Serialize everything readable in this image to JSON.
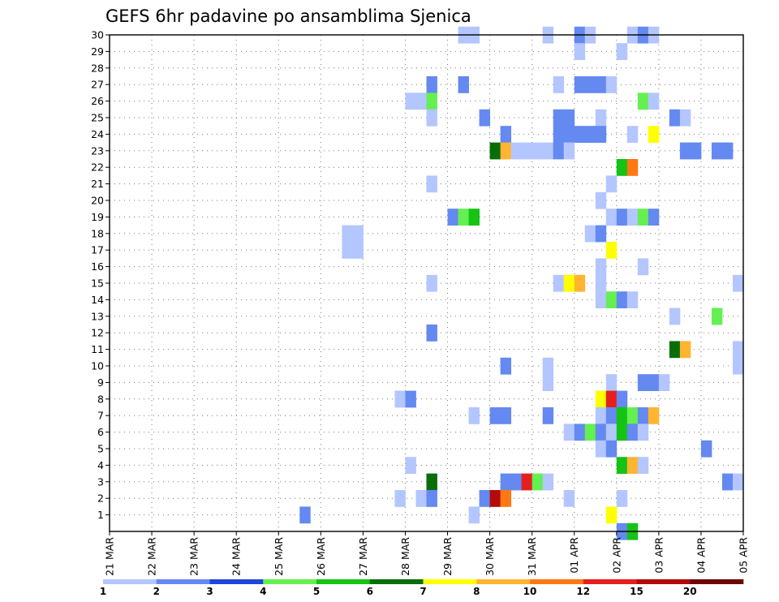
{
  "chart_data": {
    "type": "heatmap",
    "title": "GEFS 6hr padavine po ansamblima Sjenica",
    "xlabel": "",
    "ylabel": "",
    "x_tick_labels": [
      "21 MAR",
      "22 MAR",
      "23 MAR",
      "24 MAR",
      "25 MAR",
      "26 MAR",
      "27 MAR",
      "28 MAR",
      "29 MAR",
      "30 MAR",
      "31 MAR",
      "01 APR",
      "02 APR",
      "03 APR",
      "04 APR",
      "05 APR"
    ],
    "y_tick_labels": [
      "1",
      "2",
      "3",
      "4",
      "5",
      "6",
      "7",
      "8",
      "9",
      "10",
      "11",
      "12",
      "13",
      "14",
      "15",
      "16",
      "17",
      "18",
      "19",
      "20",
      "21",
      "22",
      "23",
      "24",
      "25",
      "26",
      "27",
      "28",
      "29",
      "30"
    ],
    "xlim": [
      0,
      60
    ],
    "ylim": [
      0,
      30
    ],
    "x_unit": "6-hour step from 21 MAR 00Z",
    "grid": true,
    "colorbar": {
      "position": "bottom",
      "boundaries": [
        "1",
        "2",
        "3",
        "4",
        "5",
        "6",
        "7",
        "8",
        "10",
        "12",
        "15",
        "20"
      ],
      "colors": [
        "#b4c6ff",
        "#6489f0",
        "#1e46dc",
        "#64f050",
        "#14c314",
        "#096e09",
        "#ffff00",
        "#ffb432",
        "#ff7814",
        "#e61e1e",
        "#b40a0a",
        "#6e0505"
      ]
    },
    "cells": [
      {
        "x": 33.5,
        "m": 30,
        "v": 1.5
      },
      {
        "x": 34.5,
        "m": 30,
        "v": 1.2
      },
      {
        "x": 41.5,
        "m": 30,
        "v": 1.3
      },
      {
        "x": 44.5,
        "m": 30,
        "v": 2.6
      },
      {
        "x": 45.5,
        "m": 30,
        "v": 1.4
      },
      {
        "x": 49.5,
        "m": 30,
        "v": 1.4
      },
      {
        "x": 50.5,
        "m": 30,
        "v": 2.0
      },
      {
        "x": 51.5,
        "m": 30,
        "v": 1.3
      },
      {
        "x": 44.5,
        "m": 29,
        "v": 1.2
      },
      {
        "x": 48.5,
        "m": 29,
        "v": 1.2
      },
      {
        "x": 30.5,
        "m": 27,
        "v": 2.0
      },
      {
        "x": 33.5,
        "m": 27,
        "v": 2.7
      },
      {
        "x": 42.5,
        "m": 27,
        "v": 1.3
      },
      {
        "x": 44.5,
        "m": 27,
        "v": 2.7
      },
      {
        "x": 45.5,
        "m": 27,
        "v": 2.8
      },
      {
        "x": 46.5,
        "m": 27,
        "v": 2.6
      },
      {
        "x": 47.5,
        "m": 27,
        "v": 1.4
      },
      {
        "x": 28.5,
        "m": 26,
        "v": 1.2
      },
      {
        "x": 29.5,
        "m": 26,
        "v": 1.2
      },
      {
        "x": 30.5,
        "m": 26,
        "v": 4.5
      },
      {
        "x": 50.5,
        "m": 26,
        "v": 4.4
      },
      {
        "x": 51.5,
        "m": 26,
        "v": 1.4
      },
      {
        "x": 30.5,
        "m": 25,
        "v": 1.2
      },
      {
        "x": 35.5,
        "m": 25,
        "v": 2.1
      },
      {
        "x": 42.5,
        "m": 25,
        "v": 2.0
      },
      {
        "x": 43.5,
        "m": 25,
        "v": 2.0
      },
      {
        "x": 46.5,
        "m": 25,
        "v": 1.2
      },
      {
        "x": 53.5,
        "m": 25,
        "v": 2.1
      },
      {
        "x": 54.5,
        "m": 25,
        "v": 1.4
      },
      {
        "x": 37.5,
        "m": 24,
        "v": 2.7
      },
      {
        "x": 42.5,
        "m": 24,
        "v": 2.7
      },
      {
        "x": 43.5,
        "m": 24,
        "v": 2.6
      },
      {
        "x": 44.5,
        "m": 24,
        "v": 2.6
      },
      {
        "x": 45.5,
        "m": 24,
        "v": 2.8
      },
      {
        "x": 46.5,
        "m": 24,
        "v": 2.2
      },
      {
        "x": 49.5,
        "m": 24,
        "v": 1.2
      },
      {
        "x": 51.5,
        "m": 24,
        "v": 7.5
      },
      {
        "x": 36.5,
        "m": 23,
        "v": 6.5
      },
      {
        "x": 37.5,
        "m": 23,
        "v": 9.0
      },
      {
        "x": 38.5,
        "m": 23,
        "v": 1.4
      },
      {
        "x": 39.5,
        "m": 23,
        "v": 1.5
      },
      {
        "x": 40.5,
        "m": 23,
        "v": 1.3
      },
      {
        "x": 41.5,
        "m": 23,
        "v": 1.3
      },
      {
        "x": 42.5,
        "m": 23,
        "v": 2.1
      },
      {
        "x": 43.5,
        "m": 23,
        "v": 1.4
      },
      {
        "x": 54.5,
        "m": 23,
        "v": 2.1
      },
      {
        "x": 55.5,
        "m": 23,
        "v": 2.2
      },
      {
        "x": 57.5,
        "m": 23,
        "v": 2.8
      },
      {
        "x": 58.5,
        "m": 23,
        "v": 2.7
      },
      {
        "x": 48.5,
        "m": 22,
        "v": 5.5
      },
      {
        "x": 49.5,
        "m": 22,
        "v": 11.0
      },
      {
        "x": 30.5,
        "m": 21,
        "v": 1.3
      },
      {
        "x": 47.5,
        "m": 21,
        "v": 1.3
      },
      {
        "x": 46.5,
        "m": 20,
        "v": 1.3
      },
      {
        "x": 32.5,
        "m": 19,
        "v": 2.6
      },
      {
        "x": 33.5,
        "m": 19,
        "v": 4.6
      },
      {
        "x": 34.5,
        "m": 19,
        "v": 5.5
      },
      {
        "x": 47.5,
        "m": 19,
        "v": 1.3
      },
      {
        "x": 48.5,
        "m": 19,
        "v": 2.7
      },
      {
        "x": 49.5,
        "m": 19,
        "v": 1.4
      },
      {
        "x": 50.5,
        "m": 19,
        "v": 4.4
      },
      {
        "x": 51.5,
        "m": 19,
        "v": 2.2
      },
      {
        "x": 22.5,
        "m": 18,
        "v": 1.3
      },
      {
        "x": 23.5,
        "m": 18,
        "v": 1.3
      },
      {
        "x": 45.5,
        "m": 18,
        "v": 1.4
      },
      {
        "x": 46.5,
        "m": 18,
        "v": 2.7
      },
      {
        "x": 22.5,
        "m": 17,
        "v": 1.3
      },
      {
        "x": 23.5,
        "m": 17,
        "v": 1.3
      },
      {
        "x": 47.5,
        "m": 17,
        "v": 7.5
      },
      {
        "x": 46.5,
        "m": 16,
        "v": 1.3
      },
      {
        "x": 50.5,
        "m": 16,
        "v": 1.2
      },
      {
        "x": 30.5,
        "m": 15,
        "v": 1.2
      },
      {
        "x": 42.5,
        "m": 15,
        "v": 1.3
      },
      {
        "x": 43.5,
        "m": 15,
        "v": 7.5
      },
      {
        "x": 44.5,
        "m": 15,
        "v": 9.0
      },
      {
        "x": 46.5,
        "m": 15,
        "v": 1.3
      },
      {
        "x": 59.5,
        "m": 15,
        "v": 1.4
      },
      {
        "x": 46.5,
        "m": 14,
        "v": 1.3
      },
      {
        "x": 47.5,
        "m": 14,
        "v": 4.4
      },
      {
        "x": 48.5,
        "m": 14,
        "v": 2.7
      },
      {
        "x": 49.5,
        "m": 14,
        "v": 1.3
      },
      {
        "x": 53.5,
        "m": 13,
        "v": 1.3
      },
      {
        "x": 57.5,
        "m": 13,
        "v": 4.5
      },
      {
        "x": 30.5,
        "m": 12,
        "v": 2.1
      },
      {
        "x": 53.5,
        "m": 11,
        "v": 6.5
      },
      {
        "x": 54.5,
        "m": 11,
        "v": 9.0
      },
      {
        "x": 59.5,
        "m": 11,
        "v": 1.4
      },
      {
        "x": 37.5,
        "m": 10,
        "v": 2.1
      },
      {
        "x": 41.5,
        "m": 10,
        "v": 1.2
      },
      {
        "x": 59.5,
        "m": 10,
        "v": 1.2
      },
      {
        "x": 41.5,
        "m": 9,
        "v": 1.2
      },
      {
        "x": 47.5,
        "m": 9,
        "v": 1.3
      },
      {
        "x": 50.5,
        "m": 9,
        "v": 2.1
      },
      {
        "x": 51.5,
        "m": 9,
        "v": 2.0
      },
      {
        "x": 52.5,
        "m": 9,
        "v": 1.2
      },
      {
        "x": 27.5,
        "m": 8,
        "v": 1.2
      },
      {
        "x": 28.5,
        "m": 8,
        "v": 2.7
      },
      {
        "x": 46.5,
        "m": 8,
        "v": 7.5
      },
      {
        "x": 47.5,
        "m": 8,
        "v": 13.0
      },
      {
        "x": 48.5,
        "m": 8,
        "v": 2.6
      },
      {
        "x": 34.5,
        "m": 7,
        "v": 1.2
      },
      {
        "x": 36.5,
        "m": 7,
        "v": 2.1
      },
      {
        "x": 37.5,
        "m": 7,
        "v": 2.7
      },
      {
        "x": 41.5,
        "m": 7,
        "v": 2.1
      },
      {
        "x": 46.5,
        "m": 7,
        "v": 1.3
      },
      {
        "x": 47.5,
        "m": 7,
        "v": 2.6
      },
      {
        "x": 48.5,
        "m": 7,
        "v": 5.5
      },
      {
        "x": 49.5,
        "m": 7,
        "v": 4.4
      },
      {
        "x": 50.5,
        "m": 7,
        "v": 2.1
      },
      {
        "x": 51.5,
        "m": 7,
        "v": 9.0
      },
      {
        "x": 43.5,
        "m": 6,
        "v": 1.3
      },
      {
        "x": 44.5,
        "m": 6,
        "v": 2.1
      },
      {
        "x": 45.5,
        "m": 6,
        "v": 4.5
      },
      {
        "x": 46.5,
        "m": 6,
        "v": 2.7
      },
      {
        "x": 47.5,
        "m": 6,
        "v": 1.3
      },
      {
        "x": 48.5,
        "m": 6,
        "v": 5.5
      },
      {
        "x": 49.5,
        "m": 6,
        "v": 2.1
      },
      {
        "x": 50.5,
        "m": 6,
        "v": 1.3
      },
      {
        "x": 46.5,
        "m": 5,
        "v": 1.3
      },
      {
        "x": 47.5,
        "m": 5,
        "v": 2.1
      },
      {
        "x": 56.5,
        "m": 5,
        "v": 2.7
      },
      {
        "x": 28.5,
        "m": 4,
        "v": 1.2
      },
      {
        "x": 48.5,
        "m": 4,
        "v": 5.5
      },
      {
        "x": 49.5,
        "m": 4,
        "v": 9.0
      },
      {
        "x": 50.5,
        "m": 4,
        "v": 1.3
      },
      {
        "x": 30.5,
        "m": 3,
        "v": 6.5
      },
      {
        "x": 37.5,
        "m": 3,
        "v": 2.7
      },
      {
        "x": 38.5,
        "m": 3,
        "v": 2.1
      },
      {
        "x": 39.5,
        "m": 3,
        "v": 13.0
      },
      {
        "x": 40.5,
        "m": 3,
        "v": 4.4
      },
      {
        "x": 41.5,
        "m": 3,
        "v": 1.3
      },
      {
        "x": 58.5,
        "m": 3,
        "v": 2.7
      },
      {
        "x": 59.5,
        "m": 3,
        "v": 1.3
      },
      {
        "x": 27.5,
        "m": 2,
        "v": 1.2
      },
      {
        "x": 29.5,
        "m": 2,
        "v": 1.2
      },
      {
        "x": 30.5,
        "m": 2,
        "v": 2.7
      },
      {
        "x": 35.5,
        "m": 2,
        "v": 2.7
      },
      {
        "x": 36.5,
        "m": 2,
        "v": 17.0
      },
      {
        "x": 37.5,
        "m": 2,
        "v": 11.0
      },
      {
        "x": 43.5,
        "m": 2,
        "v": 1.3
      },
      {
        "x": 48.5,
        "m": 2,
        "v": 1.3
      },
      {
        "x": 18.5,
        "m": 1,
        "v": 2.1
      },
      {
        "x": 34.5,
        "m": 1,
        "v": 1.3
      },
      {
        "x": 47.5,
        "m": 1,
        "v": 7.5
      },
      {
        "x": 48.5,
        "m": 0,
        "v": 2.1
      },
      {
        "x": 49.5,
        "m": 0,
        "v": 5.5
      }
    ]
  }
}
